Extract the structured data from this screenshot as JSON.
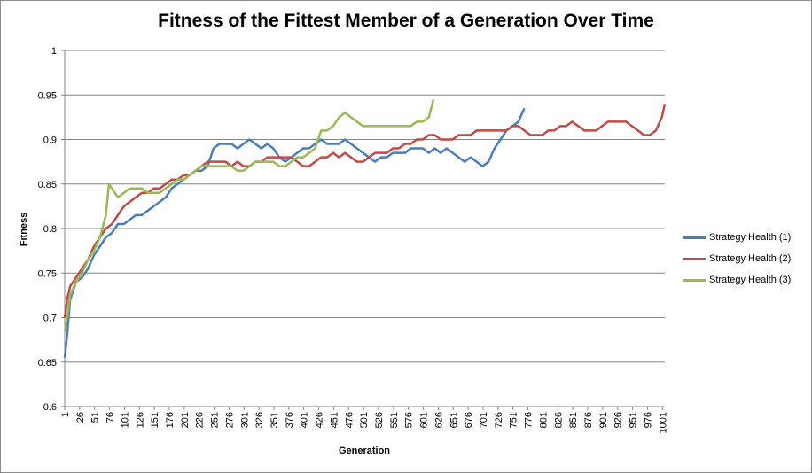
{
  "chart_data": {
    "type": "line",
    "title": "Fitness of the Fittest Member of a Generation Over Time",
    "xlabel": "Generation",
    "ylabel": "Fitness",
    "ylim": [
      0.6,
      1.0
    ],
    "yticks": [
      "0.6",
      "0.65",
      "0.7",
      "0.75",
      "0.8",
      "0.85",
      "0.9",
      "0.95",
      "1"
    ],
    "xlim": [
      1,
      1005
    ],
    "xticks": [
      "1",
      "26",
      "51",
      "76",
      "101",
      "126",
      "151",
      "176",
      "201",
      "226",
      "251",
      "276",
      "301",
      "326",
      "351",
      "376",
      "401",
      "426",
      "451",
      "476",
      "501",
      "526",
      "551",
      "576",
      "601",
      "626",
      "651",
      "676",
      "701",
      "726",
      "751",
      "776",
      "801",
      "826",
      "851",
      "876",
      "901",
      "926",
      "951",
      "976",
      "1001"
    ],
    "grid": "horizontal",
    "legend_position": "right",
    "series": [
      {
        "name": "Strategy Health (1)",
        "color": "#4a7ebb",
        "x": [
          1,
          5,
          10,
          20,
          30,
          40,
          50,
          60,
          70,
          80,
          90,
          100,
          110,
          120,
          130,
          140,
          150,
          160,
          170,
          180,
          190,
          200,
          210,
          220,
          230,
          240,
          250,
          260,
          270,
          280,
          290,
          300,
          310,
          320,
          330,
          340,
          350,
          360,
          370,
          380,
          390,
          400,
          410,
          420,
          430,
          440,
          450,
          460,
          470,
          480,
          490,
          500,
          510,
          520,
          530,
          540,
          550,
          560,
          570,
          580,
          590,
          600,
          610,
          620,
          630,
          640,
          650,
          660,
          670,
          680,
          690,
          700,
          710,
          720,
          730,
          740,
          750,
          760,
          770
        ],
        "values": [
          0.655,
          0.68,
          0.72,
          0.74,
          0.745,
          0.755,
          0.77,
          0.78,
          0.79,
          0.795,
          0.805,
          0.805,
          0.81,
          0.815,
          0.815,
          0.82,
          0.825,
          0.83,
          0.835,
          0.845,
          0.85,
          0.855,
          0.86,
          0.865,
          0.865,
          0.87,
          0.89,
          0.895,
          0.895,
          0.895,
          0.89,
          0.895,
          0.9,
          0.895,
          0.89,
          0.895,
          0.89,
          0.88,
          0.875,
          0.88,
          0.885,
          0.89,
          0.89,
          0.895,
          0.9,
          0.895,
          0.895,
          0.895,
          0.9,
          0.895,
          0.89,
          0.885,
          0.88,
          0.875,
          0.88,
          0.88,
          0.885,
          0.885,
          0.885,
          0.89,
          0.89,
          0.89,
          0.885,
          0.89,
          0.885,
          0.89,
          0.885,
          0.88,
          0.875,
          0.88,
          0.875,
          0.87,
          0.875,
          0.89,
          0.9,
          0.91,
          0.915,
          0.92,
          0.935
        ]
      },
      {
        "name": "Strategy Health (2)",
        "color": "#be4b48",
        "x": [
          1,
          5,
          10,
          20,
          30,
          40,
          50,
          60,
          70,
          80,
          90,
          100,
          110,
          120,
          130,
          140,
          150,
          160,
          170,
          180,
          190,
          200,
          210,
          220,
          230,
          240,
          250,
          260,
          270,
          280,
          290,
          300,
          310,
          320,
          330,
          340,
          350,
          360,
          370,
          380,
          390,
          400,
          410,
          420,
          430,
          440,
          450,
          460,
          470,
          480,
          490,
          500,
          510,
          520,
          530,
          540,
          550,
          560,
          570,
          580,
          590,
          600,
          610,
          620,
          630,
          640,
          650,
          660,
          670,
          680,
          690,
          700,
          710,
          720,
          730,
          740,
          750,
          760,
          770,
          780,
          790,
          800,
          810,
          820,
          830,
          840,
          850,
          860,
          870,
          880,
          890,
          900,
          910,
          920,
          930,
          940,
          950,
          960,
          970,
          980,
          990,
          1000,
          1005
        ],
        "values": [
          0.7,
          0.72,
          0.735,
          0.745,
          0.755,
          0.765,
          0.78,
          0.79,
          0.8,
          0.805,
          0.815,
          0.825,
          0.83,
          0.835,
          0.84,
          0.84,
          0.845,
          0.845,
          0.85,
          0.855,
          0.855,
          0.86,
          0.86,
          0.865,
          0.87,
          0.875,
          0.875,
          0.875,
          0.875,
          0.87,
          0.875,
          0.87,
          0.87,
          0.875,
          0.875,
          0.88,
          0.88,
          0.88,
          0.88,
          0.88,
          0.875,
          0.87,
          0.87,
          0.875,
          0.88,
          0.88,
          0.885,
          0.88,
          0.885,
          0.88,
          0.875,
          0.875,
          0.88,
          0.885,
          0.885,
          0.885,
          0.89,
          0.89,
          0.895,
          0.895,
          0.9,
          0.9,
          0.905,
          0.905,
          0.9,
          0.9,
          0.9,
          0.905,
          0.905,
          0.905,
          0.91,
          0.91,
          0.91,
          0.91,
          0.91,
          0.91,
          0.915,
          0.915,
          0.91,
          0.905,
          0.905,
          0.905,
          0.91,
          0.91,
          0.915,
          0.915,
          0.92,
          0.915,
          0.91,
          0.91,
          0.91,
          0.915,
          0.92,
          0.92,
          0.92,
          0.92,
          0.915,
          0.91,
          0.905,
          0.905,
          0.91,
          0.925,
          0.94
        ]
      },
      {
        "name": "Strategy Health (3)",
        "color": "#98b954",
        "x": [
          1,
          5,
          10,
          20,
          30,
          40,
          50,
          60,
          66,
          70,
          75,
          80,
          90,
          100,
          110,
          120,
          130,
          140,
          150,
          160,
          170,
          180,
          190,
          200,
          210,
          220,
          230,
          240,
          250,
          260,
          270,
          280,
          290,
          300,
          310,
          320,
          330,
          340,
          350,
          360,
          370,
          380,
          390,
          400,
          410,
          420,
          430,
          440,
          450,
          460,
          470,
          480,
          490,
          500,
          510,
          520,
          530,
          540,
          550,
          560,
          570,
          580,
          590,
          600,
          610,
          618
        ],
        "values": [
          0.685,
          0.7,
          0.725,
          0.74,
          0.75,
          0.765,
          0.775,
          0.79,
          0.805,
          0.815,
          0.85,
          0.845,
          0.835,
          0.84,
          0.845,
          0.845,
          0.845,
          0.84,
          0.84,
          0.84,
          0.845,
          0.85,
          0.855,
          0.855,
          0.86,
          0.865,
          0.87,
          0.87,
          0.87,
          0.87,
          0.87,
          0.87,
          0.865,
          0.865,
          0.87,
          0.875,
          0.875,
          0.875,
          0.875,
          0.87,
          0.87,
          0.875,
          0.88,
          0.88,
          0.885,
          0.89,
          0.91,
          0.91,
          0.915,
          0.925,
          0.93,
          0.925,
          0.92,
          0.915,
          0.915,
          0.915,
          0.915,
          0.915,
          0.915,
          0.915,
          0.915,
          0.915,
          0.92,
          0.92,
          0.925,
          0.945
        ]
      }
    ]
  }
}
